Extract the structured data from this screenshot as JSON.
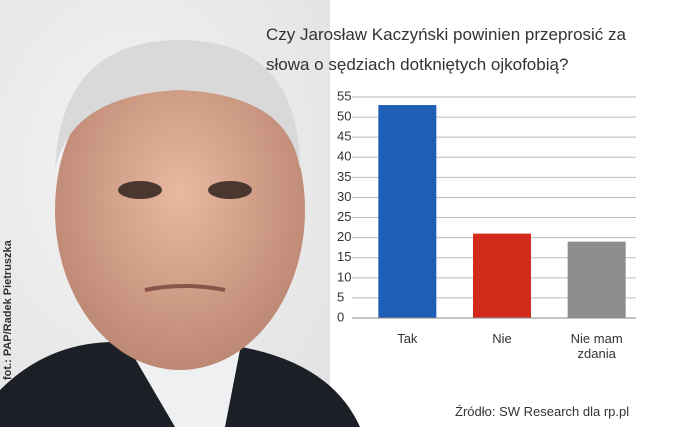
{
  "chart_data": {
    "type": "bar",
    "title": "Czy Jarosław Kaczyński powinien przeprosić za słowa o sędziach dotkniętych ojkofobią?",
    "categories": [
      "Tak",
      "Nie",
      "Nie mam zdania"
    ],
    "series": [
      {
        "values": [
          53,
          21,
          19
        ]
      }
    ],
    "colors": [
      "#1f5eb5",
      "#d32b1b",
      "#8d8d8d"
    ],
    "ylim": [
      0,
      55
    ],
    "yticks": [
      0,
      5,
      10,
      15,
      20,
      25,
      30,
      35,
      40,
      45,
      50,
      55
    ],
    "grid": true,
    "source": "Źródło: SW Research dla rp.pl",
    "photo_credit": "fot.: PAP/Radek Pietruszka"
  }
}
